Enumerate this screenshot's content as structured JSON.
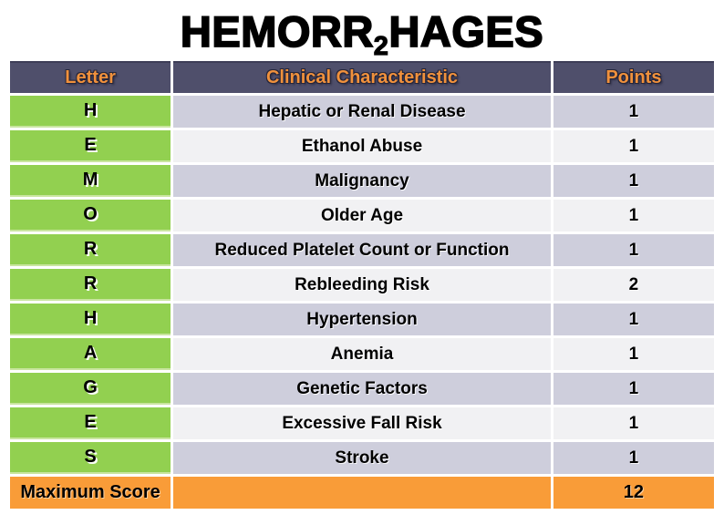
{
  "title": {
    "part1": "HEMORR",
    "subscript": "2",
    "part2": "HAGES"
  },
  "table": {
    "headers": [
      "Letter",
      "Clinical Characteristic",
      "Points"
    ],
    "rows": [
      {
        "letter": "H",
        "characteristic": "Hepatic or Renal Disease",
        "points": "1"
      },
      {
        "letter": "E",
        "characteristic": "Ethanol Abuse",
        "points": "1"
      },
      {
        "letter": "M",
        "characteristic": "Malignancy",
        "points": "1"
      },
      {
        "letter": "O",
        "characteristic": "Older Age",
        "points": "1"
      },
      {
        "letter": "R",
        "characteristic": "Reduced Platelet Count or Function",
        "points": "1"
      },
      {
        "letter": "R",
        "characteristic": "Rebleeding Risk",
        "points": "2"
      },
      {
        "letter": "H",
        "characteristic": "Hypertension",
        "points": "1"
      },
      {
        "letter": "A",
        "characteristic": "Anemia",
        "points": "1"
      },
      {
        "letter": "G",
        "characteristic": "Genetic Factors",
        "points": "1"
      },
      {
        "letter": "E",
        "characteristic": "Excessive Fall Risk",
        "points": "1"
      },
      {
        "letter": "S",
        "characteristic": "Stroke",
        "points": "1"
      }
    ],
    "footer": {
      "label": "Maximum Score",
      "characteristic": "",
      "points": "12"
    }
  },
  "colors": {
    "header_bg": "#4F4F6B",
    "header_text": "#F0913C",
    "letter_bg": "#92D050",
    "row_alt_bg": "#CECEDC",
    "row_bg": "#F1F1F3",
    "footer_bg": "#F99C38",
    "title_color": "#000000"
  }
}
